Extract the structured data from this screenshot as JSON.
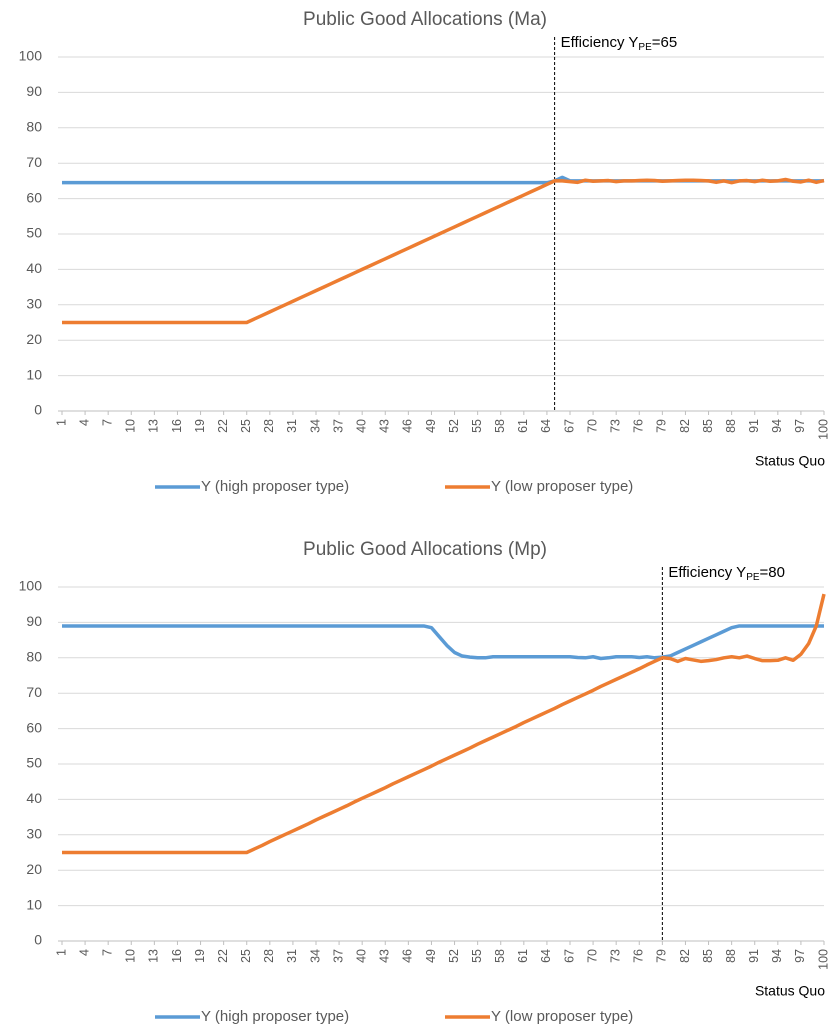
{
  "chart_data": [
    {
      "type": "line",
      "title": "Public Good Allocations (Ma)",
      "x_label": "Status Quo",
      "annotation": {
        "text": "Efficiency Y",
        "subscript": "PE",
        "suffix": "=65",
        "x": 65
      },
      "x": [
        1,
        2,
        3,
        4,
        5,
        6,
        7,
        8,
        9,
        10,
        11,
        12,
        13,
        14,
        15,
        16,
        17,
        18,
        19,
        20,
        21,
        22,
        23,
        24,
        25,
        26,
        27,
        28,
        29,
        30,
        31,
        32,
        33,
        34,
        35,
        36,
        37,
        38,
        39,
        40,
        41,
        42,
        43,
        44,
        45,
        46,
        47,
        48,
        49,
        50,
        51,
        52,
        53,
        54,
        55,
        56,
        57,
        58,
        59,
        60,
        61,
        62,
        63,
        64,
        65,
        66,
        67,
        68,
        69,
        70,
        71,
        72,
        73,
        74,
        75,
        76,
        77,
        78,
        79,
        80,
        81,
        82,
        83,
        84,
        85,
        86,
        87,
        88,
        89,
        90,
        91,
        92,
        93,
        94,
        95,
        96,
        97,
        98,
        99,
        100
      ],
      "xlim": [
        1,
        100
      ],
      "xticks": [
        1,
        4,
        7,
        10,
        13,
        16,
        19,
        22,
        25,
        28,
        31,
        34,
        37,
        40,
        43,
        46,
        49,
        52,
        55,
        58,
        61,
        64,
        67,
        70,
        73,
        76,
        79,
        82,
        85,
        88,
        91,
        94,
        97,
        100
      ],
      "ylim": [
        0,
        100
      ],
      "yticks": [
        0,
        10,
        20,
        30,
        40,
        50,
        60,
        70,
        80,
        90,
        100
      ],
      "grid": true,
      "series": [
        {
          "name": "Y (high proposer type)",
          "color": "#5b9bd5",
          "values": [
            64.5,
            64.5,
            64.5,
            64.5,
            64.5,
            64.5,
            64.5,
            64.5,
            64.5,
            64.5,
            64.5,
            64.5,
            64.5,
            64.5,
            64.5,
            64.5,
            64.5,
            64.5,
            64.5,
            64.5,
            64.5,
            64.5,
            64.5,
            64.5,
            64.5,
            64.5,
            64.5,
            64.5,
            64.5,
            64.5,
            64.5,
            64.5,
            64.5,
            64.5,
            64.5,
            64.5,
            64.5,
            64.5,
            64.5,
            64.5,
            64.5,
            64.5,
            64.5,
            64.5,
            64.5,
            64.5,
            64.5,
            64.5,
            64.5,
            64.5,
            64.5,
            64.5,
            64.5,
            64.5,
            64.5,
            64.5,
            64.5,
            64.5,
            64.5,
            64.5,
            64.5,
            64.5,
            64.5,
            64.5,
            65,
            66,
            65,
            65,
            65,
            65,
            65,
            65,
            65,
            65,
            65,
            65,
            65,
            65,
            65,
            65,
            65,
            65,
            65,
            65,
            65,
            65,
            65,
            65,
            65,
            65,
            65,
            65,
            65,
            65,
            65,
            65,
            65,
            65,
            65,
            65
          ]
        },
        {
          "name": "Y (low proposer type)",
          "color": "#ed7d31",
          "values": [
            25,
            25,
            25,
            25,
            25,
            25,
            25,
            25,
            25,
            25,
            25,
            25,
            25,
            25,
            25,
            25,
            25,
            25,
            25,
            25,
            25,
            25,
            25,
            25,
            25,
            26,
            27,
            28,
            29,
            30,
            31,
            32,
            33,
            34,
            35,
            36,
            37,
            38,
            39,
            40,
            41,
            42,
            43,
            44,
            45,
            46,
            47,
            48,
            49,
            50,
            51,
            52,
            53,
            54,
            55,
            56,
            57,
            58,
            59,
            60,
            61,
            62,
            63,
            64,
            65,
            65,
            64.8,
            64.6,
            65.2,
            64.9,
            65,
            65.1,
            64.8,
            65,
            65,
            65.1,
            65.2,
            65.1,
            64.9,
            65,
            65.1,
            65.2,
            65.2,
            65.1,
            65,
            64.6,
            65,
            64.5,
            65,
            65.1,
            64.8,
            65.2,
            64.9,
            65,
            65.4,
            64.9,
            64.7,
            65.2,
            64.6,
            65.1
          ]
        }
      ]
    },
    {
      "type": "line",
      "title": "Public Good Allocations (Mp)",
      "x_label": "Status Quo",
      "annotation": {
        "text": "Efficiency Y",
        "subscript": "PE",
        "suffix": "=80",
        "x": 79
      },
      "x": [
        1,
        2,
        3,
        4,
        5,
        6,
        7,
        8,
        9,
        10,
        11,
        12,
        13,
        14,
        15,
        16,
        17,
        18,
        19,
        20,
        21,
        22,
        23,
        24,
        25,
        26,
        27,
        28,
        29,
        30,
        31,
        32,
        33,
        34,
        35,
        36,
        37,
        38,
        39,
        40,
        41,
        42,
        43,
        44,
        45,
        46,
        47,
        48,
        49,
        50,
        51,
        52,
        53,
        54,
        55,
        56,
        57,
        58,
        59,
        60,
        61,
        62,
        63,
        64,
        65,
        66,
        67,
        68,
        69,
        70,
        71,
        72,
        73,
        74,
        75,
        76,
        77,
        78,
        79,
        80,
        81,
        82,
        83,
        84,
        85,
        86,
        87,
        88,
        89,
        90,
        91,
        92,
        93,
        94,
        95,
        96,
        97,
        98,
        99,
        100
      ],
      "xlim": [
        1,
        100
      ],
      "xticks": [
        1,
        4,
        7,
        10,
        13,
        16,
        19,
        22,
        25,
        28,
        31,
        34,
        37,
        40,
        43,
        46,
        49,
        52,
        55,
        58,
        61,
        64,
        67,
        70,
        73,
        76,
        79,
        82,
        85,
        88,
        91,
        94,
        97,
        100
      ],
      "ylim": [
        0,
        100
      ],
      "yticks": [
        0,
        10,
        20,
        30,
        40,
        50,
        60,
        70,
        80,
        90,
        100
      ],
      "grid": true,
      "series": [
        {
          "name": "Y (high proposer type)",
          "color": "#5b9bd5",
          "values": [
            89,
            89,
            89,
            89,
            89,
            89,
            89,
            89,
            89,
            89,
            89,
            89,
            89,
            89,
            89,
            89,
            89,
            89,
            89,
            89,
            89,
            89,
            89,
            89,
            89,
            89,
            89,
            89,
            89,
            89,
            89,
            89,
            89,
            89,
            89,
            89,
            89,
            89,
            89,
            89,
            89,
            89,
            89,
            89,
            89,
            89,
            89,
            89,
            88.5,
            86,
            83.5,
            81.5,
            80.5,
            80.2,
            80,
            80,
            80.3,
            80.3,
            80.3,
            80.3,
            80.3,
            80.3,
            80.3,
            80.3,
            80.3,
            80.3,
            80.3,
            80.1,
            80,
            80.3,
            79.8,
            80,
            80.3,
            80.3,
            80.3,
            80.1,
            80.3,
            80,
            80.2,
            80.5,
            81.5,
            82.5,
            83.5,
            84.5,
            85.5,
            86.5,
            87.5,
            88.5,
            89,
            89,
            89,
            89,
            89,
            89,
            89,
            89,
            89,
            89,
            89,
            89
          ]
        },
        {
          "name": "Y (low proposer type)",
          "color": "#ed7d31",
          "values": [
            25,
            25,
            25,
            25,
            25,
            25,
            25,
            25,
            25,
            25,
            25,
            25,
            25,
            25,
            25,
            25,
            25,
            25,
            25,
            25,
            25,
            25,
            25,
            25,
            25,
            26.0,
            27.0,
            28.1,
            29.1,
            30.1,
            31.1,
            32.1,
            33.1,
            34.2,
            35.2,
            36.2,
            37.2,
            38.2,
            39.3,
            40.3,
            41.3,
            42.3,
            43.3,
            44.4,
            45.4,
            46.4,
            47.4,
            48.4,
            49.4,
            50.5,
            51.5,
            52.5,
            53.5,
            54.5,
            55.6,
            56.6,
            57.6,
            58.6,
            59.6,
            60.6,
            61.7,
            62.7,
            63.7,
            64.7,
            65.7,
            66.8,
            67.8,
            68.8,
            69.8,
            70.8,
            71.9,
            72.9,
            73.9,
            74.9,
            75.9,
            76.9,
            78.0,
            79.0,
            80.0,
            79.8,
            79,
            79.8,
            79.4,
            79,
            79.2,
            79.5,
            80,
            80.3,
            80,
            80.5,
            79.8,
            79.2,
            79.2,
            79.3,
            80,
            79.3,
            81,
            84,
            89,
            98
          ]
        }
      ]
    }
  ]
}
